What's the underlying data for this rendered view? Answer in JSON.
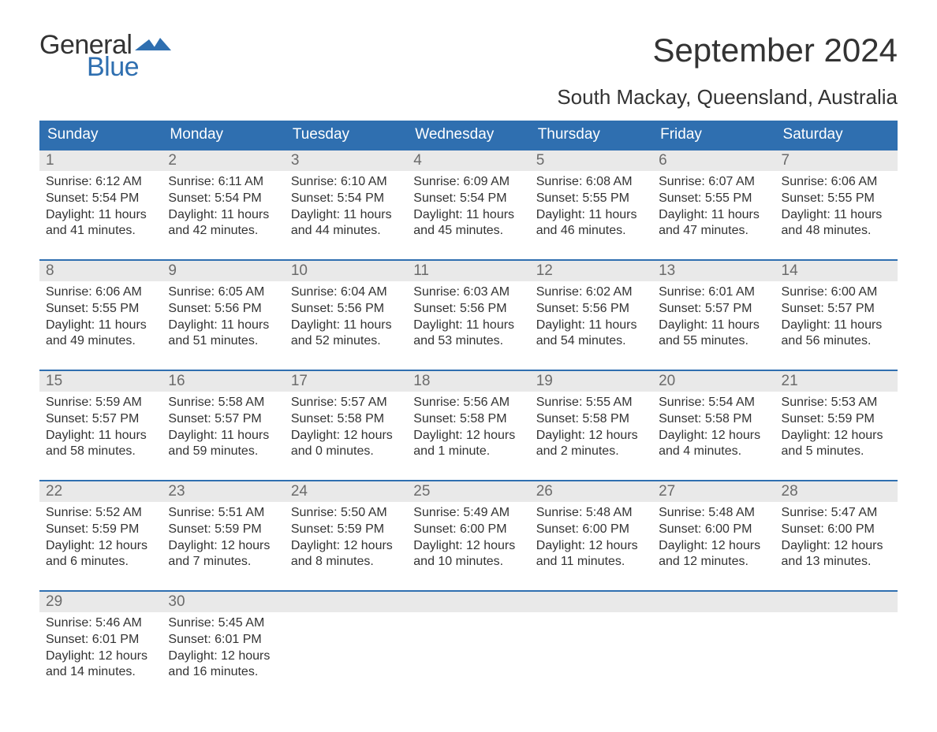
{
  "logo": {
    "general": "General",
    "blue": "Blue",
    "flag_color": "#2f6fb0"
  },
  "title": "September 2024",
  "subtitle": "South Mackay, Queensland, Australia",
  "colors": {
    "header_bg": "#2f6fb0",
    "daynum_bg": "#e9e9e9",
    "text": "#333333",
    "muted": "#6b6b6b",
    "white": "#ffffff"
  },
  "day_headers": [
    "Sunday",
    "Monday",
    "Tuesday",
    "Wednesday",
    "Thursday",
    "Friday",
    "Saturday"
  ],
  "weeks": [
    [
      {
        "n": "1",
        "sunrise": "Sunrise: 6:12 AM",
        "sunset": "Sunset: 5:54 PM",
        "d1": "Daylight: 11 hours",
        "d2": "and 41 minutes."
      },
      {
        "n": "2",
        "sunrise": "Sunrise: 6:11 AM",
        "sunset": "Sunset: 5:54 PM",
        "d1": "Daylight: 11 hours",
        "d2": "and 42 minutes."
      },
      {
        "n": "3",
        "sunrise": "Sunrise: 6:10 AM",
        "sunset": "Sunset: 5:54 PM",
        "d1": "Daylight: 11 hours",
        "d2": "and 44 minutes."
      },
      {
        "n": "4",
        "sunrise": "Sunrise: 6:09 AM",
        "sunset": "Sunset: 5:54 PM",
        "d1": "Daylight: 11 hours",
        "d2": "and 45 minutes."
      },
      {
        "n": "5",
        "sunrise": "Sunrise: 6:08 AM",
        "sunset": "Sunset: 5:55 PM",
        "d1": "Daylight: 11 hours",
        "d2": "and 46 minutes."
      },
      {
        "n": "6",
        "sunrise": "Sunrise: 6:07 AM",
        "sunset": "Sunset: 5:55 PM",
        "d1": "Daylight: 11 hours",
        "d2": "and 47 minutes."
      },
      {
        "n": "7",
        "sunrise": "Sunrise: 6:06 AM",
        "sunset": "Sunset: 5:55 PM",
        "d1": "Daylight: 11 hours",
        "d2": "and 48 minutes."
      }
    ],
    [
      {
        "n": "8",
        "sunrise": "Sunrise: 6:06 AM",
        "sunset": "Sunset: 5:55 PM",
        "d1": "Daylight: 11 hours",
        "d2": "and 49 minutes."
      },
      {
        "n": "9",
        "sunrise": "Sunrise: 6:05 AM",
        "sunset": "Sunset: 5:56 PM",
        "d1": "Daylight: 11 hours",
        "d2": "and 51 minutes."
      },
      {
        "n": "10",
        "sunrise": "Sunrise: 6:04 AM",
        "sunset": "Sunset: 5:56 PM",
        "d1": "Daylight: 11 hours",
        "d2": "and 52 minutes."
      },
      {
        "n": "11",
        "sunrise": "Sunrise: 6:03 AM",
        "sunset": "Sunset: 5:56 PM",
        "d1": "Daylight: 11 hours",
        "d2": "and 53 minutes."
      },
      {
        "n": "12",
        "sunrise": "Sunrise: 6:02 AM",
        "sunset": "Sunset: 5:56 PM",
        "d1": "Daylight: 11 hours",
        "d2": "and 54 minutes."
      },
      {
        "n": "13",
        "sunrise": "Sunrise: 6:01 AM",
        "sunset": "Sunset: 5:57 PM",
        "d1": "Daylight: 11 hours",
        "d2": "and 55 minutes."
      },
      {
        "n": "14",
        "sunrise": "Sunrise: 6:00 AM",
        "sunset": "Sunset: 5:57 PM",
        "d1": "Daylight: 11 hours",
        "d2": "and 56 minutes."
      }
    ],
    [
      {
        "n": "15",
        "sunrise": "Sunrise: 5:59 AM",
        "sunset": "Sunset: 5:57 PM",
        "d1": "Daylight: 11 hours",
        "d2": "and 58 minutes."
      },
      {
        "n": "16",
        "sunrise": "Sunrise: 5:58 AM",
        "sunset": "Sunset: 5:57 PM",
        "d1": "Daylight: 11 hours",
        "d2": "and 59 minutes."
      },
      {
        "n": "17",
        "sunrise": "Sunrise: 5:57 AM",
        "sunset": "Sunset: 5:58 PM",
        "d1": "Daylight: 12 hours",
        "d2": "and 0 minutes."
      },
      {
        "n": "18",
        "sunrise": "Sunrise: 5:56 AM",
        "sunset": "Sunset: 5:58 PM",
        "d1": "Daylight: 12 hours",
        "d2": "and 1 minute."
      },
      {
        "n": "19",
        "sunrise": "Sunrise: 5:55 AM",
        "sunset": "Sunset: 5:58 PM",
        "d1": "Daylight: 12 hours",
        "d2": "and 2 minutes."
      },
      {
        "n": "20",
        "sunrise": "Sunrise: 5:54 AM",
        "sunset": "Sunset: 5:58 PM",
        "d1": "Daylight: 12 hours",
        "d2": "and 4 minutes."
      },
      {
        "n": "21",
        "sunrise": "Sunrise: 5:53 AM",
        "sunset": "Sunset: 5:59 PM",
        "d1": "Daylight: 12 hours",
        "d2": "and 5 minutes."
      }
    ],
    [
      {
        "n": "22",
        "sunrise": "Sunrise: 5:52 AM",
        "sunset": "Sunset: 5:59 PM",
        "d1": "Daylight: 12 hours",
        "d2": "and 6 minutes."
      },
      {
        "n": "23",
        "sunrise": "Sunrise: 5:51 AM",
        "sunset": "Sunset: 5:59 PM",
        "d1": "Daylight: 12 hours",
        "d2": "and 7 minutes."
      },
      {
        "n": "24",
        "sunrise": "Sunrise: 5:50 AM",
        "sunset": "Sunset: 5:59 PM",
        "d1": "Daylight: 12 hours",
        "d2": "and 8 minutes."
      },
      {
        "n": "25",
        "sunrise": "Sunrise: 5:49 AM",
        "sunset": "Sunset: 6:00 PM",
        "d1": "Daylight: 12 hours",
        "d2": "and 10 minutes."
      },
      {
        "n": "26",
        "sunrise": "Sunrise: 5:48 AM",
        "sunset": "Sunset: 6:00 PM",
        "d1": "Daylight: 12 hours",
        "d2": "and 11 minutes."
      },
      {
        "n": "27",
        "sunrise": "Sunrise: 5:48 AM",
        "sunset": "Sunset: 6:00 PM",
        "d1": "Daylight: 12 hours",
        "d2": "and 12 minutes."
      },
      {
        "n": "28",
        "sunrise": "Sunrise: 5:47 AM",
        "sunset": "Sunset: 6:00 PM",
        "d1": "Daylight: 12 hours",
        "d2": "and 13 minutes."
      }
    ],
    [
      {
        "n": "29",
        "sunrise": "Sunrise: 5:46 AM",
        "sunset": "Sunset: 6:01 PM",
        "d1": "Daylight: 12 hours",
        "d2": "and 14 minutes."
      },
      {
        "n": "30",
        "sunrise": "Sunrise: 5:45 AM",
        "sunset": "Sunset: 6:01 PM",
        "d1": "Daylight: 12 hours",
        "d2": "and 16 minutes."
      },
      {
        "n": "",
        "sunrise": "",
        "sunset": "",
        "d1": "",
        "d2": ""
      },
      {
        "n": "",
        "sunrise": "",
        "sunset": "",
        "d1": "",
        "d2": ""
      },
      {
        "n": "",
        "sunrise": "",
        "sunset": "",
        "d1": "",
        "d2": ""
      },
      {
        "n": "",
        "sunrise": "",
        "sunset": "",
        "d1": "",
        "d2": ""
      },
      {
        "n": "",
        "sunrise": "",
        "sunset": "",
        "d1": "",
        "d2": ""
      }
    ]
  ]
}
